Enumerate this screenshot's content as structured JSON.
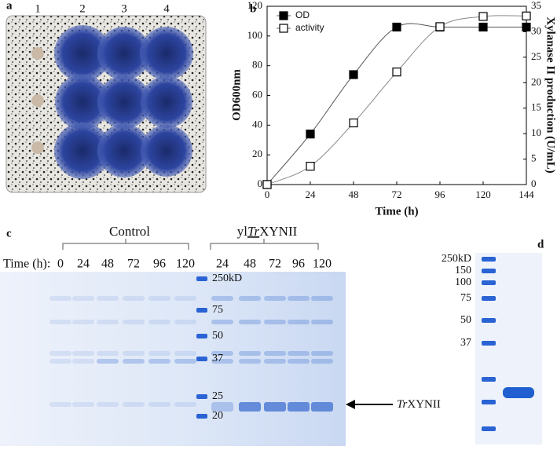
{
  "panel_labels": [
    "a",
    "b",
    "c",
    "d"
  ],
  "panel_a": {
    "lane_labels": [
      "1",
      "2",
      "3",
      "4"
    ]
  },
  "chart_data": {
    "type": "line",
    "x": [
      0,
      24,
      48,
      72,
      96,
      120,
      144
    ],
    "xlim": [
      0,
      144
    ],
    "xticks": [
      0,
      24,
      48,
      72,
      96,
      120,
      144
    ],
    "ylim": [
      0,
      120
    ],
    "yticks": [
      0,
      20,
      40,
      60,
      80,
      100,
      120
    ],
    "y2lim": [
      0,
      35
    ],
    "y2ticks": [
      0,
      5,
      10,
      15,
      20,
      25,
      30,
      35
    ],
    "x_label": "Time (h)",
    "y_label": "OD600nm",
    "y2_label": "Xylanase II production (U/mL)",
    "legend": "top-left",
    "series": [
      {
        "name": "OD",
        "color": "#000000",
        "marker": "filled-square",
        "values": [
          0,
          34,
          74,
          106,
          106,
          106,
          106
        ]
      },
      {
        "name": "activity",
        "color": "#000000",
        "marker": "open-square",
        "axis": "y2",
        "values": [
          0,
          3.6,
          12.1,
          22.1,
          31,
          33,
          33.1
        ]
      }
    ]
  },
  "panel_c": {
    "control_label": "Control",
    "strain_label": {
      "prefix": "yl",
      "italic": "Tr",
      "suffix": "XYNII"
    },
    "time_label": "Time (h):",
    "lanes": [
      "0",
      "24",
      "48",
      "72",
      "96",
      "120",
      "24",
      "48",
      "72",
      "96",
      "120"
    ],
    "markers": [
      "250kD",
      "75",
      "50",
      "37",
      "25",
      "20"
    ],
    "arrow_label": {
      "italic": "Tr",
      "suffix": "XYNII"
    }
  },
  "panel_d": {
    "markers": [
      "250kD",
      "150",
      "100",
      "75",
      "50",
      "37"
    ]
  }
}
